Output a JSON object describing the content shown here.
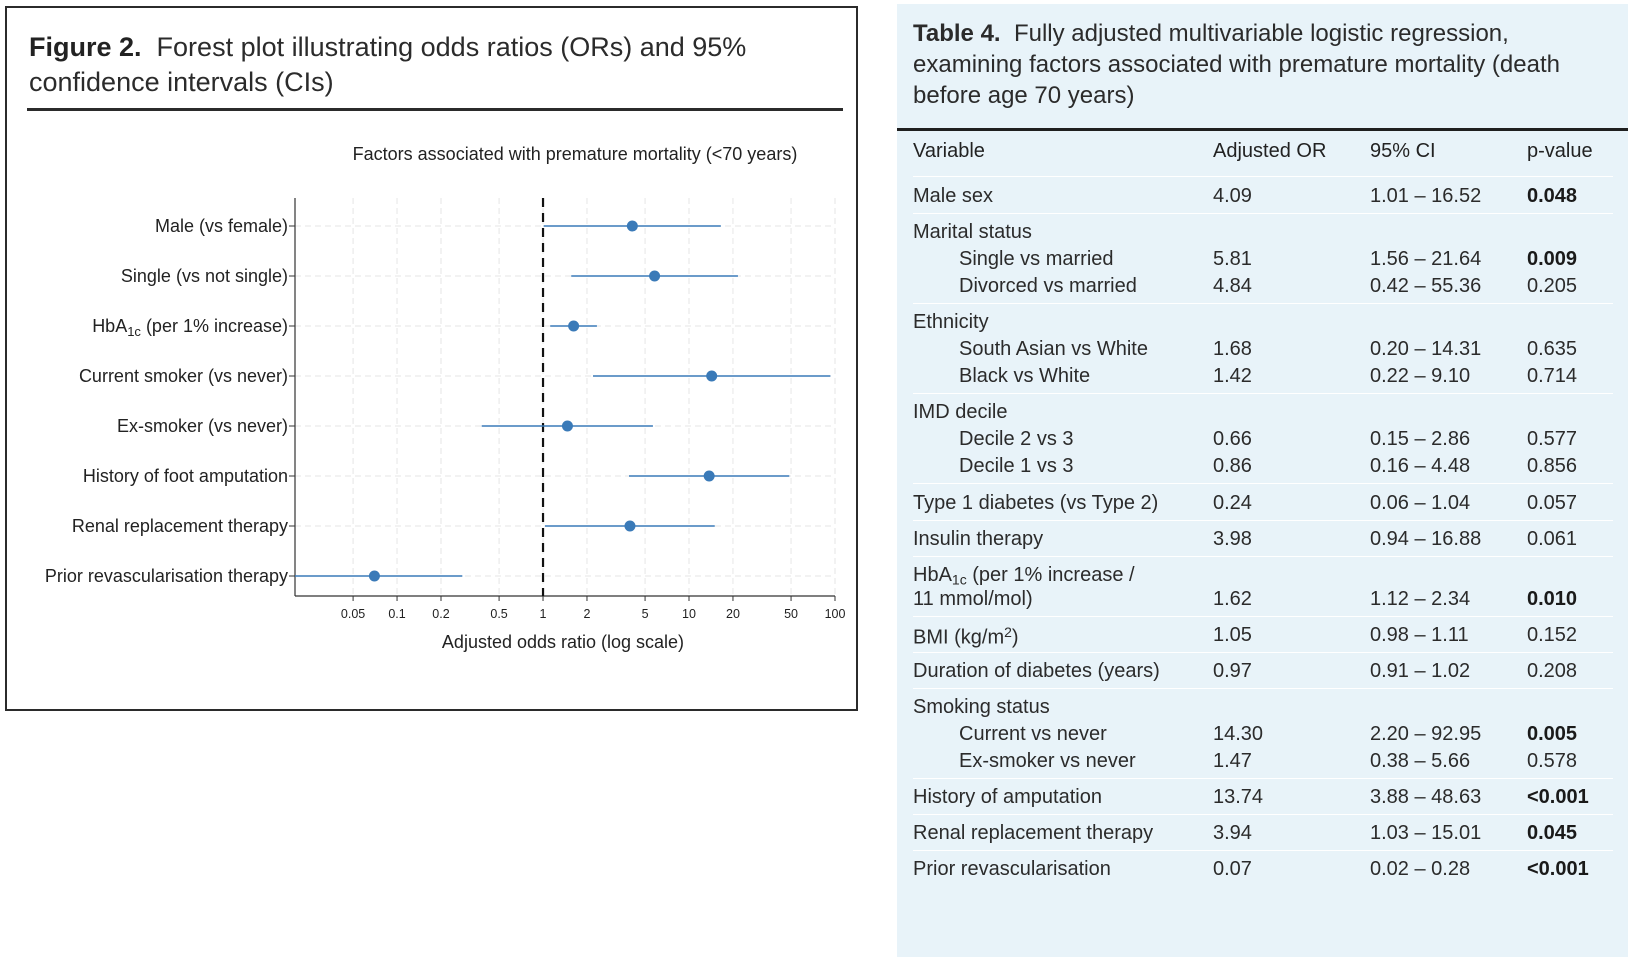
{
  "figure": {
    "label": "Figure 2.",
    "caption": "Forest plot illustrating odds ratios (ORs) and 95% confidence intervals (CIs)"
  },
  "chart_data": {
    "type": "forest",
    "title": "Factors associated with premature mortality (<70 years)",
    "xlabel": "Adjusted odds ratio (log scale)",
    "xscale": "log",
    "xlim": [
      0.02,
      100
    ],
    "xticks": [
      "0.05",
      "0.1",
      "0.2",
      "0.5",
      "1",
      "2",
      "5",
      "10",
      "20",
      "50",
      "100"
    ],
    "reference_line": 1,
    "grid": true,
    "marker_color": "#3a7ab8",
    "rows": [
      {
        "label": "Male (vs female)",
        "or": 4.09,
        "lo": 1.01,
        "hi": 16.52
      },
      {
        "label_pre": "Single (vs not single)",
        "label": "Single (vs not single)",
        "or": 5.81,
        "lo": 1.56,
        "hi": 21.64
      },
      {
        "label": "HbA1c (per 1% increase)",
        "label_main": "HbA",
        "label_sub": "1c",
        "label_rest": " (per 1% increase)",
        "or": 1.62,
        "lo": 1.12,
        "hi": 2.34
      },
      {
        "label": "Current smoker (vs never)",
        "or": 14.3,
        "lo": 2.2,
        "hi": 92.95
      },
      {
        "label": "Ex-smoker (vs never)",
        "or": 1.47,
        "lo": 0.38,
        "hi": 5.66
      },
      {
        "label": "History of foot amputation",
        "or": 13.74,
        "lo": 3.88,
        "hi": 48.63
      },
      {
        "label": "Renal replacement therapy",
        "or": 3.94,
        "lo": 1.03,
        "hi": 15.01
      },
      {
        "label": "Prior revascularisation therapy",
        "or": 0.07,
        "lo": 0.02,
        "hi": 0.28
      }
    ]
  },
  "table": {
    "label": "Table 4.",
    "caption": "Fully adjusted multivariable logistic regression, examining factors associated with premature mortality (death before age 70 years)",
    "headers": [
      "Variable",
      "Adjusted OR",
      "95% CI",
      "p-value"
    ],
    "rows": [
      {
        "var": "Male sex",
        "or": "4.09",
        "ci": "1.01 – 16.52",
        "p": "0.048",
        "sig": true
      },
      {
        "var": "Marital status",
        "group": true
      },
      {
        "var": "Single vs married",
        "indent": true,
        "or": "5.81",
        "ci": "1.56 – 21.64",
        "p": "0.009",
        "sig": true
      },
      {
        "var": "Divorced vs married",
        "indent": true,
        "or": "4.84",
        "ci": "0.42 – 55.36",
        "p": "0.205",
        "sig": false
      },
      {
        "var": "Ethnicity",
        "group": true
      },
      {
        "var": "South Asian vs White",
        "indent": true,
        "or": "1.68",
        "ci": "0.20 – 14.31",
        "p": "0.635",
        "sig": false
      },
      {
        "var": "Black vs White",
        "indent": true,
        "or": "1.42",
        "ci": "0.22 – 9.10",
        "p": "0.714",
        "sig": false
      },
      {
        "var": "IMD decile",
        "group": true
      },
      {
        "var": "Decile 2 vs 3",
        "indent": true,
        "or": "0.66",
        "ci": "0.15 – 2.86",
        "p": "0.577",
        "sig": false
      },
      {
        "var": "Decile 1 vs 3",
        "indent": true,
        "or": "0.86",
        "ci": "0.16 – 4.48",
        "p": "0.856",
        "sig": false
      },
      {
        "var": "Type 1 diabetes (vs Type 2)",
        "or": "0.24",
        "ci": "0.06 – 1.04",
        "p": "0.057",
        "sig": false
      },
      {
        "var": "Insulin therapy",
        "or": "3.98",
        "ci": "0.94 – 16.88",
        "p": "0.061",
        "sig": false
      },
      {
        "var_main": "HbA",
        "var_sub": "1c",
        "var_rest": " (per 1% increase /",
        "var": "HbA1c (per 1% increase /",
        "group": true
      },
      {
        "var": "11 mmol/mol)",
        "or": "1.62",
        "ci": "1.12 – 2.34",
        "p": "0.010",
        "sig": true
      },
      {
        "var_main": "BMI (kg/m",
        "var_sup": "2",
        "var_rest": ")",
        "var": "BMI (kg/m2)",
        "or": "1.05",
        "ci": "0.98 – 1.11",
        "p": "0.152",
        "sig": false
      },
      {
        "var": "Duration of diabetes (years)",
        "or": "0.97",
        "ci": "0.91 – 1.02",
        "p": "0.208",
        "sig": false
      },
      {
        "var": "Smoking status",
        "group": true
      },
      {
        "var": "Current vs never",
        "indent": true,
        "or": "14.30",
        "ci": "2.20 – 92.95",
        "p": "0.005",
        "sig": true
      },
      {
        "var": "Ex-smoker vs never",
        "indent": true,
        "or": "1.47",
        "ci": "0.38 – 5.66",
        "p": "0.578",
        "sig": false
      },
      {
        "var": "History of amputation",
        "or": "13.74",
        "ci": "3.88 – 48.63",
        "p": "<0.001",
        "sig": true
      },
      {
        "var": "Renal replacement therapy",
        "or": "3.94",
        "ci": "1.03 – 15.01",
        "p": "0.045",
        "sig": true
      },
      {
        "var": "Prior revascularisation",
        "or": "0.07",
        "ci": "0.02 – 0.28",
        "p": "<0.001",
        "sig": true
      }
    ]
  }
}
